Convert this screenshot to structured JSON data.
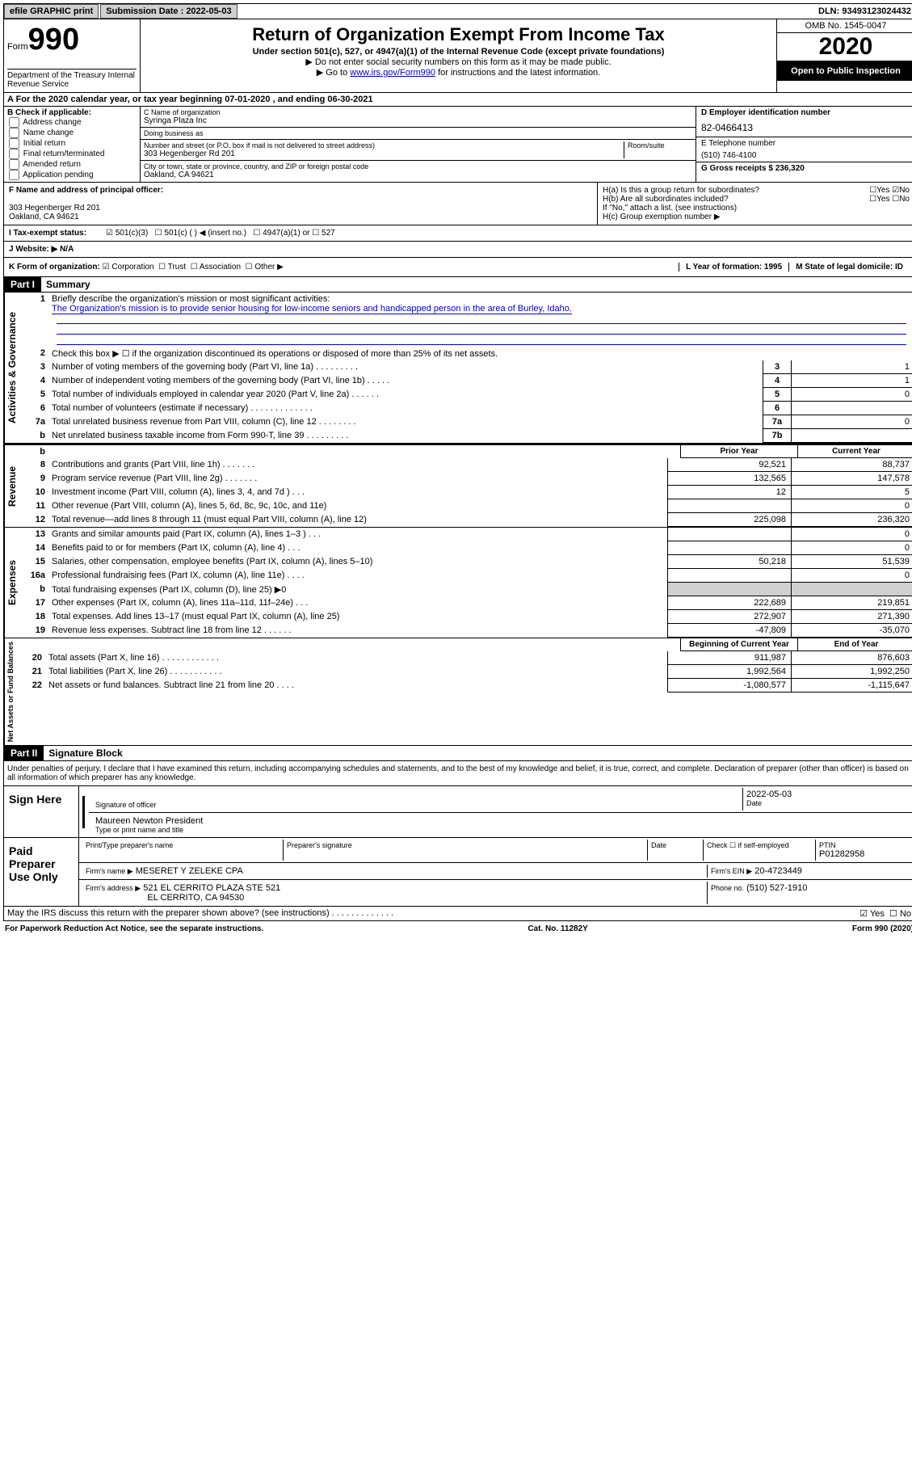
{
  "topbar": {
    "efile": "efile GRAPHIC print",
    "sub_label": "Submission Date : 2022-05-03",
    "dln_label": "DLN: 93493123024432"
  },
  "header": {
    "form_word": "Form",
    "form_num": "990",
    "title": "Return of Organization Exempt From Income Tax",
    "sub1": "Under section 501(c), 527, or 4947(a)(1) of the Internal Revenue Code (except private foundations)",
    "sub2": "▶ Do not enter social security numbers on this form as it may be made public.",
    "sub3_pre": "▶ Go to ",
    "sub3_link": "www.irs.gov/Form990",
    "sub3_post": " for instructions and the latest information.",
    "omb": "OMB No. 1545-0047",
    "year": "2020",
    "open": "Open to Public Inspection",
    "dept": "Department of the Treasury\nInternal Revenue Service"
  },
  "row_a": "A For the 2020 calendar year, or tax year beginning 07-01-2020    , and ending 06-30-2021",
  "col_b": {
    "hdr": "B Check if applicable:",
    "opts": [
      "Address change",
      "Name change",
      "Initial return",
      "Final return/terminated",
      "Amended return",
      "Application pending"
    ]
  },
  "col_c": {
    "name_lbl": "C Name of organization",
    "name": "Syringa Plaza Inc",
    "dba_lbl": "Doing business as",
    "dba": "",
    "addr_lbl": "Number and street (or P.O. box if mail is not delivered to street address)",
    "room_lbl": "Room/suite",
    "addr": "303 Hegenberger Rd 201",
    "city_lbl": "City or town, state or province, country, and ZIP or foreign postal code",
    "city": "Oakland, CA  94621"
  },
  "col_d": {
    "ein_lbl": "D Employer identification number",
    "ein": "82-0466413",
    "tel_lbl": "E Telephone number",
    "tel": "(510) 746-4100",
    "gross_lbl": "G Gross receipts $ 236,320"
  },
  "row_f": {
    "lbl": "F Name and address of principal officer:",
    "addr1": "303 Hegenberger Rd 201",
    "addr2": "Oakland, CA  94621"
  },
  "row_h": {
    "ha": "H(a)  Is this a group return for subordinates?",
    "hb": "H(b)  Are all subordinates included?",
    "hb_note": "If \"No,\" attach a list. (see instructions)",
    "hc": "H(c)  Group exemption number ▶",
    "yes": "Yes",
    "no": "No"
  },
  "row_i": {
    "lbl": "I   Tax-exempt status:",
    "o1": "501(c)(3)",
    "o2": "501(c) (   ) ◀ (insert no.)",
    "o3": "4947(a)(1) or",
    "o4": "527"
  },
  "row_j": "J   Website: ▶   N/A",
  "row_k": {
    "lbl": "K Form of organization:",
    "corp": "Corporation",
    "trust": "Trust",
    "assoc": "Association",
    "other": "Other ▶",
    "l": "L Year of formation: 1995",
    "m": "M State of legal domicile: ID"
  },
  "part1": {
    "hdr": "Part I",
    "title": "Summary",
    "q1": "Briefly describe the organization's mission or most significant activities:",
    "mission": "The Organization's mission is to provide senior housing for low-income seniors and handicapped person in the area of Burley, Idaho.",
    "q2": "Check this box ▶ ☐  if the organization discontinued its operations or disposed of more than 25% of its net assets.",
    "lines_gov": [
      {
        "n": "3",
        "d": "Number of voting members of the governing body (Part VI, line 1a)  .  .  .  .  .  .  .  .  .",
        "box": "3",
        "v": "1"
      },
      {
        "n": "4",
        "d": "Number of independent voting members of the governing body (Part VI, line 1b)  .  .  .  .  .",
        "box": "4",
        "v": "1"
      },
      {
        "n": "5",
        "d": "Total number of individuals employed in calendar year 2020 (Part V, line 2a)  .  .  .  .  .  .",
        "box": "5",
        "v": "0"
      },
      {
        "n": "6",
        "d": "Total number of volunteers (estimate if necessary)  .  .  .  .  .  .  .  .  .  .  .  .  .",
        "box": "6",
        "v": ""
      },
      {
        "n": "7a",
        "d": "Total unrelated business revenue from Part VIII, column (C), line 12  .  .  .  .  .  .  .  .",
        "box": "7a",
        "v": "0"
      },
      {
        "n": "b",
        "d": "Net unrelated business taxable income from Form 990-T, line 39  .  .  .  .  .  .  .  .  .",
        "box": "7b",
        "v": ""
      }
    ],
    "prior_hdr": "Prior Year",
    "curr_hdr": "Current Year",
    "rev": [
      {
        "n": "8",
        "d": "Contributions and grants (Part VIII, line 1h)  .  .  .  .  .  .  .",
        "p": "92,521",
        "c": "88,737"
      },
      {
        "n": "9",
        "d": "Program service revenue (Part VIII, line 2g)  .  .  .  .  .  .  .",
        "p": "132,565",
        "c": "147,578"
      },
      {
        "n": "10",
        "d": "Investment income (Part VIII, column (A), lines 3, 4, and 7d )  .  .  .",
        "p": "12",
        "c": "5"
      },
      {
        "n": "11",
        "d": "Other revenue (Part VIII, column (A), lines 5, 6d, 8c, 9c, 10c, and 11e)",
        "p": "",
        "c": "0"
      },
      {
        "n": "12",
        "d": "Total revenue—add lines 8 through 11 (must equal Part VIII, column (A), line 12)",
        "p": "225,098",
        "c": "236,320"
      }
    ],
    "exp": [
      {
        "n": "13",
        "d": "Grants and similar amounts paid (Part IX, column (A), lines 1–3 )  .  .  .",
        "p": "",
        "c": "0"
      },
      {
        "n": "14",
        "d": "Benefits paid to or for members (Part IX, column (A), line 4)  .  .  .",
        "p": "",
        "c": "0"
      },
      {
        "n": "15",
        "d": "Salaries, other compensation, employee benefits (Part IX, column (A), lines 5–10)",
        "p": "50,218",
        "c": "51,539"
      },
      {
        "n": "16a",
        "d": "Professional fundraising fees (Part IX, column (A), line 11e)  .  .  .  .",
        "p": "",
        "c": "0"
      },
      {
        "n": "b",
        "d": "Total fundraising expenses (Part IX, column (D), line 25) ▶0",
        "p": "shade",
        "c": "shade"
      },
      {
        "n": "17",
        "d": "Other expenses (Part IX, column (A), lines 11a–11d, 11f–24e)  .  .  .",
        "p": "222,689",
        "c": "219,851"
      },
      {
        "n": "18",
        "d": "Total expenses. Add lines 13–17 (must equal Part IX, column (A), line 25)",
        "p": "272,907",
        "c": "271,390"
      },
      {
        "n": "19",
        "d": "Revenue less expenses. Subtract line 18 from line 12  .  .  .  .  .  .",
        "p": "-47,809",
        "c": "-35,070"
      }
    ],
    "beg_hdr": "Beginning of Current Year",
    "end_hdr": "End of Year",
    "net": [
      {
        "n": "20",
        "d": "Total assets (Part X, line 16)  .  .  .  .  .  .  .  .  .  .  .  .",
        "p": "911,987",
        "c": "876,603"
      },
      {
        "n": "21",
        "d": "Total liabilities (Part X, line 26)  .  .  .  .  .  .  .  .  .  .  .",
        "p": "1,992,564",
        "c": "1,992,250"
      },
      {
        "n": "22",
        "d": "Net assets or fund balances. Subtract line 21 from line 20  .  .  .  .",
        "p": "-1,080,577",
        "c": "-1,115,647"
      }
    ]
  },
  "part2": {
    "hdr": "Part II",
    "title": "Signature Block",
    "decl": "Under penalties of perjury, I declare that I have examined this return, including accompanying schedules and statements, and to the best of my knowledge and belief, it is true, correct, and complete. Declaration of preparer (other than officer) is based on all information of which preparer has any knowledge.",
    "sign_here": "Sign Here",
    "sig_off": "Signature of officer",
    "date": "Date",
    "date_val": "2022-05-03",
    "name_title": "Maureen Newton  President",
    "name_lbl": "Type or print name and title",
    "paid": "Paid Preparer Use Only",
    "prep_name_lbl": "Print/Type preparer's name",
    "prep_sig_lbl": "Preparer's signature",
    "check_self": "Check ☐ if self-employed",
    "ptin_lbl": "PTIN",
    "ptin": "P01282958",
    "firm_name_lbl": "Firm's name    ▶",
    "firm_name": "MESERET Y ZELEKE CPA",
    "firm_ein_lbl": "Firm's EIN ▶",
    "firm_ein": "20-4723449",
    "firm_addr_lbl": "Firm's address ▶",
    "firm_addr1": "521 EL CERRITO PLAZA STE 521",
    "firm_addr2": "EL CERRITO, CA  94530",
    "phone_lbl": "Phone no.",
    "phone": "(510) 527-1910",
    "discuss": "May the IRS discuss this return with the preparer shown above? (see instructions)  .  .  .  .  .  .  .  .  .  .  .  .  .",
    "yes": "Yes",
    "no": "No"
  },
  "footer": {
    "left": "For Paperwork Reduction Act Notice, see the separate instructions.",
    "mid": "Cat. No. 11282Y",
    "right": "Form 990 (2020)"
  },
  "side": {
    "gov": "Activities & Governance",
    "rev": "Revenue",
    "exp": "Expenses",
    "net": "Net Assets or Fund Balances"
  }
}
